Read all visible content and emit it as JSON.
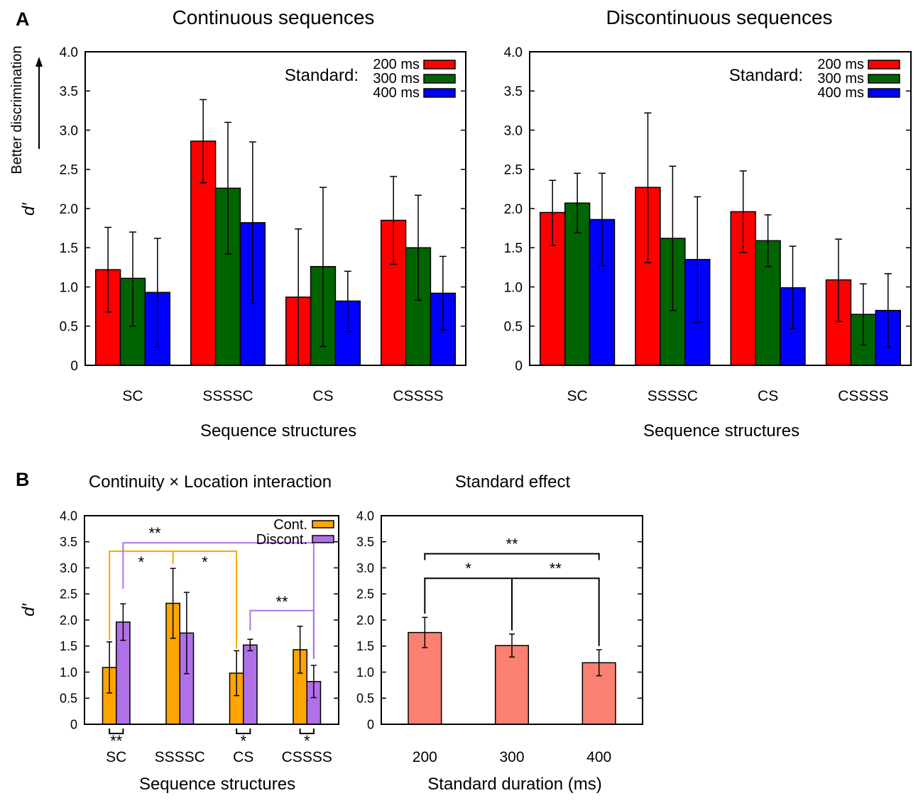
{
  "panel_labels": {
    "a": "A",
    "b": "B"
  },
  "annotations": {
    "better_discrimination": "Better discrimination",
    "ylabel": "d′"
  },
  "chart_data": [
    {
      "type": "bar",
      "title": "Continuous sequences",
      "xlabel": "Sequence structures",
      "ylabel": "d′",
      "ylim": [
        0,
        4
      ],
      "yticks": [
        "0",
        "0.5",
        "1.0",
        "1.5",
        "2.0",
        "2.5",
        "3.0",
        "3.5",
        "4.0"
      ],
      "categories": [
        "SC",
        "SSSSC",
        "CS",
        "CSSSS"
      ],
      "legend_title": "Standard:",
      "series": [
        {
          "name": "200 ms",
          "color": "#ff0000",
          "values": [
            1.22,
            2.86,
            0.87,
            1.85
          ],
          "err_low": [
            0.68,
            2.33,
            0.0,
            1.29
          ],
          "err_high": [
            1.76,
            3.39,
            1.74,
            2.41
          ]
        },
        {
          "name": "300 ms",
          "color": "#006400",
          "values": [
            1.11,
            2.26,
            1.26,
            1.5
          ],
          "err_low": [
            0.5,
            1.42,
            0.24,
            0.83
          ],
          "err_high": [
            1.7,
            3.1,
            2.27,
            2.17
          ]
        },
        {
          "name": "400 ms",
          "color": "#0000ff",
          "values": [
            0.93,
            1.82,
            0.82,
            0.92
          ],
          "err_low": [
            0.23,
            0.79,
            0.43,
            0.45
          ],
          "err_high": [
            1.62,
            2.85,
            1.2,
            1.39
          ]
        }
      ]
    },
    {
      "type": "bar",
      "title": "Discontinuous sequences",
      "xlabel": "Sequence structures",
      "ylabel": "d′",
      "ylim": [
        0,
        4
      ],
      "yticks": [
        "0",
        "0.5",
        "1.0",
        "1.5",
        "2.0",
        "2.5",
        "3.0",
        "3.5",
        "4.0"
      ],
      "categories": [
        "SC",
        "SSSSC",
        "CS",
        "CSSSS"
      ],
      "legend_title": "Standard:",
      "series": [
        {
          "name": "200 ms",
          "color": "#ff0000",
          "values": [
            1.95,
            2.27,
            1.96,
            1.09
          ],
          "err_low": [
            1.53,
            1.31,
            1.44,
            0.56
          ],
          "err_high": [
            2.36,
            3.22,
            2.48,
            1.61
          ]
        },
        {
          "name": "300 ms",
          "color": "#006400",
          "values": [
            2.07,
            1.62,
            1.59,
            0.65
          ],
          "err_low": [
            1.69,
            0.7,
            1.26,
            0.26
          ],
          "err_high": [
            2.45,
            2.54,
            1.92,
            1.04
          ]
        },
        {
          "name": "400 ms",
          "color": "#0000ff",
          "values": [
            1.86,
            1.35,
            0.99,
            0.7
          ],
          "err_low": [
            1.27,
            0.55,
            0.47,
            0.23
          ],
          "err_high": [
            2.45,
            2.15,
            1.52,
            1.17
          ]
        }
      ]
    },
    {
      "type": "bar",
      "title": "Continuity × Location interaction",
      "xlabel": "Sequence structures",
      "ylabel": "d′",
      "ylim": [
        0,
        4
      ],
      "yticks": [
        "0",
        "0.5",
        "1.0",
        "1.5",
        "2.0",
        "2.5",
        "3.0",
        "3.5",
        "4.0"
      ],
      "categories": [
        "SC",
        "SSSSC",
        "CS",
        "CSSSS"
      ],
      "series": [
        {
          "name": "Cont.",
          "color": "#ffa500",
          "values": [
            1.09,
            2.32,
            0.98,
            1.43
          ],
          "err_low": [
            0.6,
            1.65,
            0.55,
            0.98
          ],
          "err_high": [
            1.58,
            2.99,
            1.41,
            1.88
          ]
        },
        {
          "name": "Discont.",
          "color": "#b070e8",
          "values": [
            1.96,
            1.75,
            1.52,
            0.82
          ],
          "err_low": [
            1.61,
            0.97,
            1.41,
            0.51
          ],
          "err_high": [
            2.31,
            2.53,
            1.63,
            1.13
          ]
        }
      ],
      "significance": [
        {
          "label": "**",
          "between": [
            "SC Discont.",
            "CSSSS Discont."
          ]
        },
        {
          "label": "*",
          "between": [
            "SC Cont.",
            "SSSSC Cont."
          ]
        },
        {
          "label": "*",
          "between": [
            "SSSSC Cont.",
            "CS Cont."
          ]
        },
        {
          "label": "**",
          "between": [
            "CS Discont.",
            "CSSSS Discont."
          ]
        },
        {
          "label": "**",
          "between": [
            "SC Cont.",
            "SC Discont."
          ]
        },
        {
          "label": "*",
          "between": [
            "CS Cont.",
            "CS Discont."
          ]
        },
        {
          "label": "*",
          "between": [
            "CSSSS Cont.",
            "CSSSS Discont."
          ]
        }
      ]
    },
    {
      "type": "bar",
      "title": "Standard effect",
      "xlabel": "Standard duration (ms)",
      "ylabel": "",
      "ylim": [
        0,
        4
      ],
      "yticks": [
        "0",
        "0.5",
        "1.0",
        "1.5",
        "2.0",
        "2.5",
        "3.0",
        "3.5",
        "4.0"
      ],
      "categories": [
        "200",
        "300",
        "400"
      ],
      "series": [
        {
          "name": "Standard effect",
          "color": "#fa8072",
          "values": [
            1.76,
            1.51,
            1.18
          ],
          "err_low": [
            1.47,
            1.29,
            0.93
          ],
          "err_high": [
            2.05,
            1.73,
            1.43
          ]
        }
      ],
      "significance": [
        {
          "label": "**",
          "between": [
            "200",
            "400"
          ]
        },
        {
          "label": "*",
          "between": [
            "200",
            "300"
          ]
        },
        {
          "label": "**",
          "between": [
            "300",
            "400"
          ]
        }
      ]
    }
  ]
}
